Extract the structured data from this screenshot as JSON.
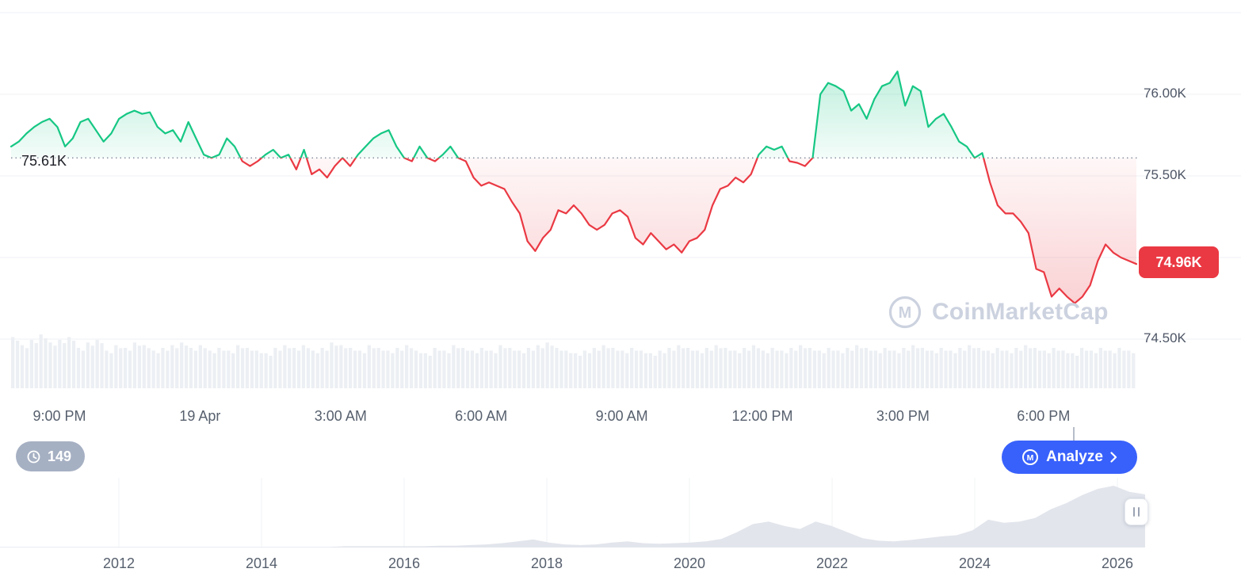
{
  "colors": {
    "up": "#16c784",
    "down": "#ea3943",
    "accent_blue": "#3861fb",
    "badge_gray": "#a6b0c3",
    "grid": "#eff2f5",
    "baseline_dots": "#7f8899",
    "volume_bar": "#eceff3",
    "minimap_fill": "#e2e5ec",
    "axis_text": "#57606e",
    "watermark_gray": "#ccd2df"
  },
  "chart": {
    "baseline_label": "75.61K",
    "price_badge": "74.96K",
    "y_axis_labels": [
      "76.00K",
      "75.50K",
      "74.50K"
    ]
  },
  "watermark": {
    "text": "CoinMarketCap"
  },
  "controls": {
    "history_count": "149",
    "analyze_label": "Analyze"
  },
  "chart_data": {
    "type": "line",
    "title": "",
    "x_tick_labels": [
      "9:00 PM",
      "19 Apr",
      "3:00 AM",
      "6:00 AM",
      "9:00 AM",
      "12:00 PM",
      "3:00 PM",
      "6:00 PM"
    ],
    "y_axis_ticks": [
      76.0,
      75.5,
      74.5
    ],
    "y_range": [
      74.45,
      76.55
    ],
    "baseline_value": 75.61,
    "last_value": 74.96,
    "unit": "K",
    "grid_on": true,
    "legend": "none",
    "prices": [
      75.68,
      75.71,
      75.76,
      75.8,
      75.83,
      75.85,
      75.8,
      75.68,
      75.73,
      75.83,
      75.85,
      75.78,
      75.71,
      75.76,
      75.85,
      75.88,
      75.9,
      75.88,
      75.89,
      75.8,
      75.76,
      75.78,
      75.71,
      75.83,
      75.73,
      75.63,
      75.61,
      75.63,
      75.73,
      75.68,
      75.59,
      75.56,
      75.59,
      75.63,
      75.66,
      75.61,
      75.63,
      75.54,
      75.66,
      75.51,
      75.54,
      75.49,
      75.56,
      75.61,
      75.56,
      75.63,
      75.68,
      75.73,
      75.76,
      75.78,
      75.68,
      75.61,
      75.59,
      75.68,
      75.61,
      75.59,
      75.63,
      75.68,
      75.61,
      75.59,
      75.49,
      75.44,
      75.46,
      75.44,
      75.42,
      75.34,
      75.27,
      75.1,
      75.04,
      75.12,
      75.17,
      75.29,
      75.27,
      75.32,
      75.27,
      75.2,
      75.17,
      75.2,
      75.27,
      75.29,
      75.25,
      75.12,
      75.08,
      75.15,
      75.1,
      75.05,
      75.08,
      75.03,
      75.1,
      75.12,
      75.17,
      75.32,
      75.42,
      75.44,
      75.49,
      75.46,
      75.51,
      75.63,
      75.68,
      75.66,
      75.68,
      75.59,
      75.58,
      75.56,
      75.61,
      76.0,
      76.07,
      76.05,
      76.02,
      75.9,
      75.94,
      75.85,
      75.97,
      76.05,
      76.07,
      76.14,
      75.93,
      76.05,
      76.02,
      75.8,
      75.85,
      75.88,
      75.8,
      75.71,
      75.68,
      75.61,
      75.64,
      75.46,
      75.32,
      75.27,
      75.27,
      75.22,
      75.15,
      74.93,
      74.91,
      74.76,
      74.81,
      74.76,
      74.72,
      74.76,
      74.83,
      74.98,
      75.08,
      75.03,
      75.0,
      74.98,
      74.96
    ],
    "volume_norm": [
      0.95,
      0.8,
      0.9,
      1.0,
      0.85,
      0.9,
      0.95,
      0.75,
      0.85,
      0.9,
      0.7,
      0.8,
      0.75,
      0.85,
      0.8,
      0.7,
      0.75,
      0.8,
      0.85,
      0.75,
      0.8,
      0.7,
      0.75,
      0.7,
      0.8,
      0.75,
      0.7,
      0.65,
      0.75,
      0.8,
      0.75,
      0.8,
      0.7,
      0.75,
      0.85,
      0.8,
      0.75,
      0.7,
      0.8,
      0.75,
      0.7,
      0.75,
      0.8,
      0.7,
      0.65,
      0.75,
      0.7,
      0.8,
      0.75,
      0.7,
      0.75,
      0.7,
      0.8,
      0.75,
      0.7,
      0.75,
      0.8,
      0.85,
      0.75,
      0.7,
      0.65,
      0.7,
      0.75,
      0.8,
      0.75,
      0.7,
      0.75,
      0.7,
      0.65,
      0.7,
      0.75,
      0.8,
      0.75,
      0.7,
      0.75,
      0.8,
      0.75,
      0.7,
      0.75,
      0.8,
      0.7,
      0.75,
      0.7,
      0.75,
      0.8,
      0.75,
      0.7,
      0.75,
      0.7,
      0.75,
      0.8,
      0.75,
      0.7,
      0.75,
      0.7,
      0.75,
      0.8,
      0.75,
      0.7,
      0.75,
      0.7,
      0.75,
      0.8,
      0.75,
      0.7,
      0.75,
      0.7,
      0.75,
      0.8,
      0.75,
      0.7,
      0.75,
      0.7,
      0.65,
      0.75,
      0.7,
      0.75,
      0.7,
      0.75,
      0.7
    ],
    "minimap": {
      "year_ticks": [
        "2012",
        "2014",
        "2016",
        "2018",
        "2020",
        "2022",
        "2024",
        "2026"
      ],
      "values": [
        0.01,
        0.01,
        0.01,
        0.01,
        0.01,
        0.01,
        0.01,
        0.01,
        0.01,
        0.01,
        0.01,
        0.01,
        0.01,
        0.01,
        0.01,
        0.01,
        0.01,
        0.01,
        0.01,
        0.01,
        0.01,
        0.01,
        0.02,
        0.02,
        0.02,
        0.02,
        0.02,
        0.02,
        0.03,
        0.03,
        0.04,
        0.05,
        0.07,
        0.1,
        0.13,
        0.08,
        0.05,
        0.04,
        0.05,
        0.08,
        0.1,
        0.07,
        0.06,
        0.07,
        0.08,
        0.1,
        0.14,
        0.25,
        0.38,
        0.42,
        0.35,
        0.3,
        0.42,
        0.35,
        0.25,
        0.15,
        0.11,
        0.1,
        0.12,
        0.15,
        0.18,
        0.2,
        0.28,
        0.45,
        0.4,
        0.42,
        0.48,
        0.62,
        0.72,
        0.85,
        0.95,
        1.0,
        0.9,
        0.86
      ]
    }
  }
}
